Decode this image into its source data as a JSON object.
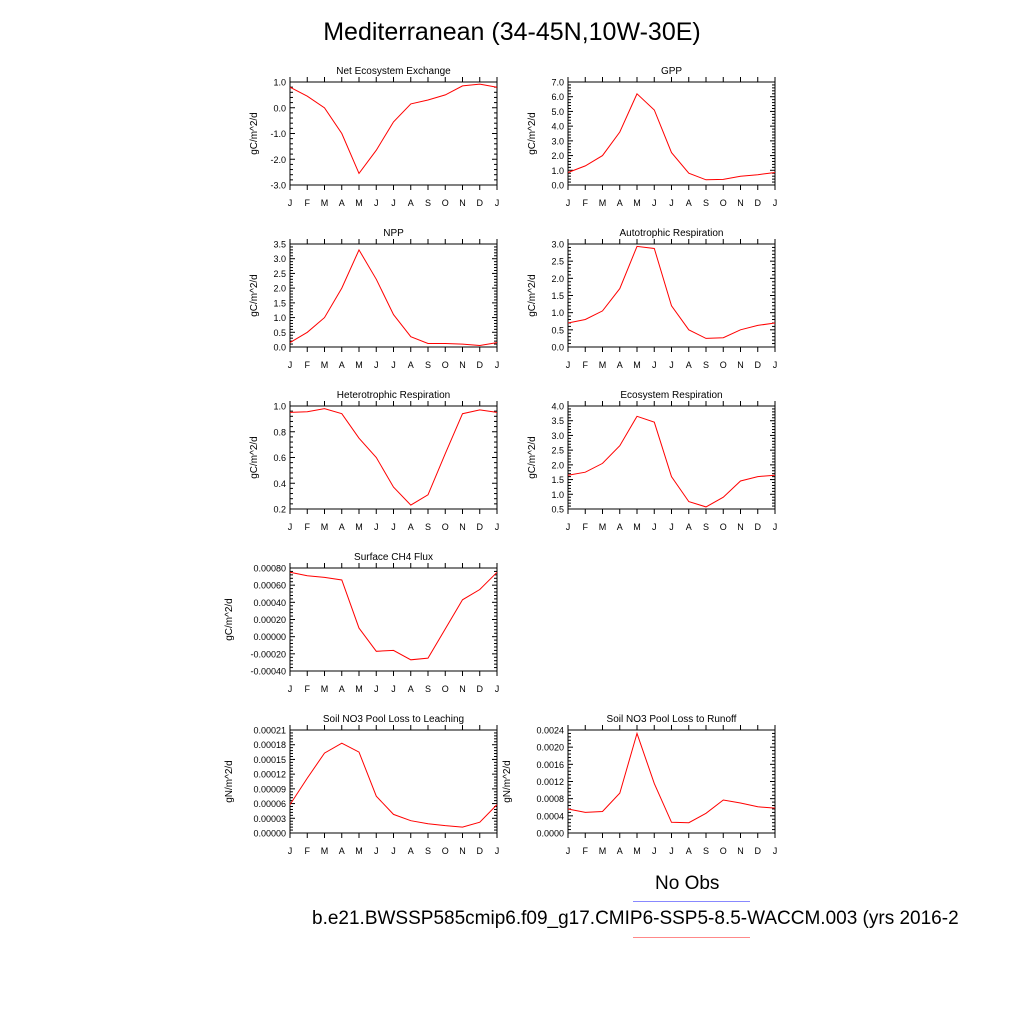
{
  "title": "Mediterranean (34-45N,10W-30E)",
  "months": [
    "J",
    "F",
    "M",
    "A",
    "M",
    "J",
    "J",
    "A",
    "S",
    "O",
    "N",
    "D",
    "J"
  ],
  "legend": {
    "obs_label": "No Obs",
    "obs_color": "#8888ff",
    "model_label": "b.e21.BWSSP585cmip6.f09_g17.CMIP6-SSP5-8.5-WACCM.003 (yrs 2016-2",
    "model_color": "#ff8888"
  },
  "line_color": "#ff0000",
  "chart_data": [
    {
      "type": "line",
      "title": "Net Ecosystem Exchange",
      "ylabel": "gC/m^2/d",
      "ylim": [
        -3.0,
        1.0
      ],
      "yticks": [
        -3.0,
        -2.0,
        -1.0,
        0.0,
        1.0
      ],
      "ytick_labels": [
        "-3.0",
        "-2.0",
        "-1.0",
        "0.0",
        "1.0"
      ],
      "x": [
        "J",
        "F",
        "M",
        "A",
        "M",
        "J",
        "J",
        "A",
        "S",
        "O",
        "N",
        "D",
        "J"
      ],
      "values": [
        0.8,
        0.45,
        0.0,
        -1.0,
        -2.55,
        -1.65,
        -0.55,
        0.15,
        0.3,
        0.5,
        0.85,
        0.92,
        0.8
      ]
    },
    {
      "type": "line",
      "title": "GPP",
      "ylabel": "gC/m^2/d",
      "ylim": [
        0.0,
        7.0
      ],
      "yticks": [
        0,
        1,
        2,
        3,
        4,
        5,
        6,
        7
      ],
      "ytick_labels": [
        "0.0",
        "1.0",
        "2.0",
        "3.0",
        "4.0",
        "5.0",
        "6.0",
        "7.0"
      ],
      "x": [
        "J",
        "F",
        "M",
        "A",
        "M",
        "J",
        "J",
        "A",
        "S",
        "O",
        "N",
        "D",
        "J"
      ],
      "values": [
        0.85,
        1.3,
        2.0,
        3.6,
        6.2,
        5.1,
        2.2,
        0.8,
        0.35,
        0.38,
        0.6,
        0.7,
        0.85
      ]
    },
    {
      "type": "line",
      "title": "NPP",
      "ylabel": "gC/m^2/d",
      "ylim": [
        0.0,
        3.5
      ],
      "yticks": [
        0,
        0.5,
        1.0,
        1.5,
        2.0,
        2.5,
        3.0,
        3.5
      ],
      "ytick_labels": [
        "0.0",
        "0.5",
        "1.0",
        "1.5",
        "2.0",
        "2.5",
        "3.0",
        "3.5"
      ],
      "x": [
        "J",
        "F",
        "M",
        "A",
        "M",
        "J",
        "J",
        "A",
        "S",
        "O",
        "N",
        "D",
        "J"
      ],
      "values": [
        0.15,
        0.5,
        1.0,
        2.0,
        3.3,
        2.3,
        1.1,
        0.35,
        0.12,
        0.12,
        0.1,
        0.05,
        0.15
      ]
    },
    {
      "type": "line",
      "title": "Autotrophic Respiration",
      "ylabel": "gC/m^2/d",
      "ylim": [
        0.0,
        3.0
      ],
      "yticks": [
        0,
        0.5,
        1.0,
        1.5,
        2.0,
        2.5,
        3.0
      ],
      "ytick_labels": [
        "0.0",
        "0.5",
        "1.0",
        "1.5",
        "2.0",
        "2.5",
        "3.0"
      ],
      "x": [
        "J",
        "F",
        "M",
        "A",
        "M",
        "J",
        "J",
        "A",
        "S",
        "O",
        "N",
        "D",
        "J"
      ],
      "values": [
        0.7,
        0.8,
        1.05,
        1.7,
        2.93,
        2.87,
        1.2,
        0.5,
        0.25,
        0.27,
        0.5,
        0.63,
        0.7
      ]
    },
    {
      "type": "line",
      "title": "Heterotrophic Respiration",
      "ylabel": "gC/m^2/d",
      "ylim": [
        0.2,
        1.0
      ],
      "yticks": [
        0.2,
        0.4,
        0.6,
        0.8,
        1.0
      ],
      "ytick_labels": [
        "0.2",
        "0.4",
        "0.6",
        "0.8",
        "1.0"
      ],
      "x": [
        "J",
        "F",
        "M",
        "A",
        "M",
        "J",
        "J",
        "A",
        "S",
        "O",
        "N",
        "D",
        "J"
      ],
      "values": [
        0.95,
        0.955,
        0.98,
        0.94,
        0.75,
        0.6,
        0.37,
        0.23,
        0.31,
        0.63,
        0.94,
        0.97,
        0.95
      ]
    },
    {
      "type": "line",
      "title": "Ecosystem Respiration",
      "ylabel": "gC/m^2/d",
      "ylim": [
        0.5,
        4.0
      ],
      "yticks": [
        0.5,
        1.0,
        1.5,
        2.0,
        2.5,
        3.0,
        3.5,
        4.0
      ],
      "ytick_labels": [
        "0.5",
        "1.0",
        "1.5",
        "2.0",
        "2.5",
        "3.0",
        "3.5",
        "4.0"
      ],
      "x": [
        "J",
        "F",
        "M",
        "A",
        "M",
        "J",
        "J",
        "A",
        "S",
        "O",
        "N",
        "D",
        "J"
      ],
      "values": [
        1.65,
        1.75,
        2.05,
        2.65,
        3.65,
        3.45,
        1.6,
        0.75,
        0.57,
        0.9,
        1.45,
        1.6,
        1.65
      ]
    },
    {
      "type": "line",
      "title": "Surface CH4 Flux",
      "ylabel": "gC/m^2/d",
      "ylim": [
        -0.0004,
        0.0008
      ],
      "yticks": [
        -0.0004,
        -0.0002,
        0.0,
        0.0002,
        0.0004,
        0.0006,
        0.0008
      ],
      "ytick_labels": [
        "-0.00040",
        "-0.00020",
        "0.00000",
        "0.00020",
        "0.00040",
        "0.00060",
        "0.00080"
      ],
      "x": [
        "J",
        "F",
        "M",
        "A",
        "M",
        "J",
        "J",
        "A",
        "S",
        "O",
        "N",
        "D",
        "J"
      ],
      "values": [
        0.00075,
        0.00071,
        0.00069,
        0.00066,
        0.0001,
        -0.00017,
        -0.00016,
        -0.00027,
        -0.00025,
        9e-05,
        0.00043,
        0.00055,
        0.00075
      ]
    },
    {
      "type": "line",
      "title": "Soil NO3 Pool Loss to Leaching",
      "ylabel": "gN/m^2/d",
      "ylim": [
        0.0,
        0.00021
      ],
      "yticks": [
        0.0,
        3e-05,
        6e-05,
        9e-05,
        0.00012,
        0.00015,
        0.00018,
        0.00021
      ],
      "ytick_labels": [
        "0.00000",
        "0.00003",
        "0.00006",
        "0.00009",
        "0.00012",
        "0.00015",
        "0.00018",
        "0.00021"
      ],
      "x": [
        "J",
        "F",
        "M",
        "A",
        "M",
        "J",
        "J",
        "A",
        "S",
        "O",
        "N",
        "D",
        "J"
      ],
      "values": [
        5.8e-05,
        0.000112,
        0.000163,
        0.000183,
        0.000165,
        7.5e-05,
        3.8e-05,
        2.5e-05,
        1.9e-05,
        1.5e-05,
        1.2e-05,
        2.2e-05,
        5.8e-05
      ]
    },
    {
      "type": "line",
      "title": "Soil NO3 Pool Loss to Runoff",
      "ylabel": "gN/m^2/d",
      "ylim": [
        0.0,
        0.0024
      ],
      "yticks": [
        0.0,
        0.0004,
        0.0008,
        0.0012,
        0.0016,
        0.002,
        0.0024
      ],
      "ytick_labels": [
        "0.0000",
        "0.0004",
        "0.0008",
        "0.0012",
        "0.0016",
        "0.0020",
        "0.0024"
      ],
      "x": [
        "J",
        "F",
        "M",
        "A",
        "M",
        "J",
        "J",
        "A",
        "S",
        "O",
        "N",
        "D",
        "J"
      ],
      "values": [
        0.00056,
        0.00048,
        0.0005,
        0.00093,
        0.00232,
        0.00115,
        0.00025,
        0.00024,
        0.00046,
        0.00077,
        0.0007,
        0.00061,
        0.00058
      ]
    }
  ]
}
